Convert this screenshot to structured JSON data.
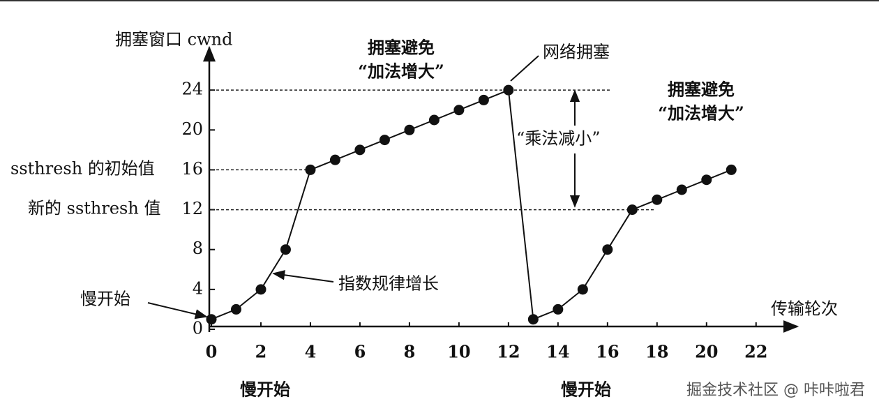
{
  "chart_data": {
    "type": "line",
    "y_label": "拥塞窗口 cwnd",
    "x_label": "传输轮次",
    "x": [
      0,
      1,
      2,
      3,
      4,
      5,
      6,
      7,
      8,
      9,
      10,
      11,
      12,
      13,
      14,
      15,
      16,
      17,
      18,
      19,
      20,
      21
    ],
    "series": [
      {
        "color": "#111111",
        "values": [
          1,
          2,
          4,
          8,
          16,
          17,
          18,
          19,
          20,
          21,
          22,
          23,
          24,
          1,
          2,
          4,
          8,
          12,
          13,
          14,
          15,
          16
        ]
      }
    ],
    "xlim": [
      0,
      23.5
    ],
    "ylim": [
      0,
      28
    ],
    "xticks": [
      0,
      2,
      4,
      6,
      8,
      10,
      12,
      14,
      16,
      18,
      20,
      22
    ],
    "yticks": [
      0,
      4,
      8,
      12,
      16,
      20,
      24
    ],
    "grid": false,
    "annotations": {
      "ssthresh_initial": "ssthresh 的初始值",
      "ssthresh_new": "新的 ssthresh 值",
      "avoid1_line1": "拥塞避免",
      "avoid1_line2": "“加法增大”",
      "congestion": "网络拥塞",
      "decrease": "“乘法减小”",
      "avoid2_line1": "拥塞避免",
      "avoid2_line2": "“加法增大”",
      "slow_start_arrow": "慢开始",
      "exponential": "指数规律增长",
      "slow_start_1": "慢开始",
      "slow_start_2": "慢开始"
    }
  },
  "watermark": "掘金技术社区 @ 咔咔啦君"
}
